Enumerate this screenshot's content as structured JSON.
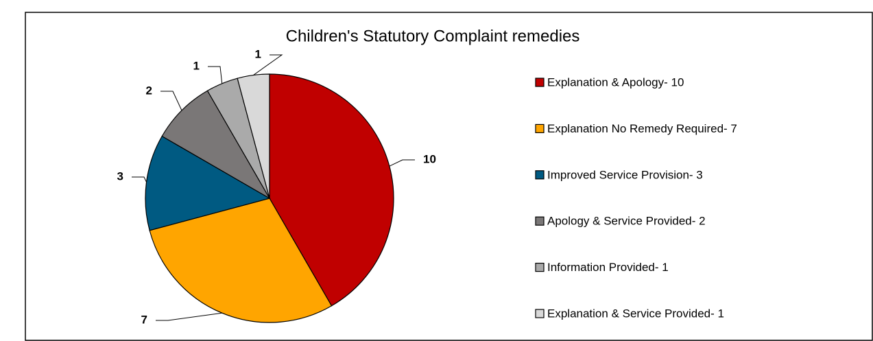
{
  "chart_data": {
    "type": "pie",
    "title": "Children's Statutory Complaint remedies",
    "categories": [
      "Explanation & Apology- 10",
      "Explanation No Remedy Required- 7",
      "Improved Service Provision- 3",
      "Apology & Service Provided- 2",
      "Information Provided- 1",
      "Explanation & Service Provided- 1"
    ],
    "values": [
      10,
      7,
      3,
      2,
      1,
      1
    ],
    "colors": [
      "#c00000",
      "#ffa500",
      "#005a82",
      "#7a7777",
      "#aaaaaa",
      "#d9d9d9"
    ],
    "legend": "right"
  }
}
